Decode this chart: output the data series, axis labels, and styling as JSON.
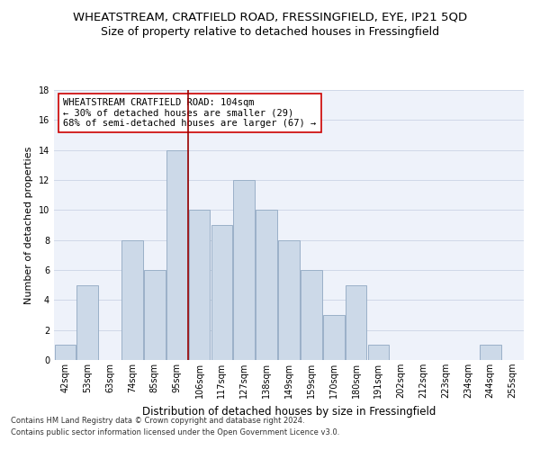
{
  "title": "WHEATSTREAM, CRATFIELD ROAD, FRESSINGFIELD, EYE, IP21 5QD",
  "subtitle": "Size of property relative to detached houses in Fressingfield",
  "xlabel": "Distribution of detached houses by size in Fressingfield",
  "ylabel": "Number of detached properties",
  "footnote1": "Contains HM Land Registry data © Crown copyright and database right 2024.",
  "footnote2": "Contains public sector information licensed under the Open Government Licence v3.0.",
  "bar_labels": [
    "42sqm",
    "53sqm",
    "63sqm",
    "74sqm",
    "85sqm",
    "95sqm",
    "106sqm",
    "117sqm",
    "127sqm",
    "138sqm",
    "149sqm",
    "159sqm",
    "170sqm",
    "180sqm",
    "191sqm",
    "202sqm",
    "212sqm",
    "223sqm",
    "234sqm",
    "244sqm",
    "255sqm"
  ],
  "bar_values": [
    1,
    5,
    0,
    8,
    6,
    14,
    10,
    9,
    12,
    10,
    8,
    6,
    3,
    5,
    1,
    0,
    0,
    0,
    0,
    1,
    0
  ],
  "bar_color": "#ccd9e8",
  "bar_edge_color": "#9ab0c8",
  "vline_x": 5.5,
  "vline_color": "#990000",
  "annotation_text": "WHEATSTREAM CRATFIELD ROAD: 104sqm\n← 30% of detached houses are smaller (29)\n68% of semi-detached houses are larger (67) →",
  "annotation_box_color": "white",
  "annotation_box_edge": "#cc0000",
  "ylim": [
    0,
    18
  ],
  "yticks": [
    0,
    2,
    4,
    6,
    8,
    10,
    12,
    14,
    16,
    18
  ],
  "grid_color": "#d0d8e8",
  "bg_color": "#eef2fa",
  "title_fontsize": 9.5,
  "subtitle_fontsize": 9,
  "xlabel_fontsize": 8.5,
  "ylabel_fontsize": 8,
  "tick_fontsize": 7,
  "annot_fontsize": 7.5,
  "footnote_fontsize": 6
}
